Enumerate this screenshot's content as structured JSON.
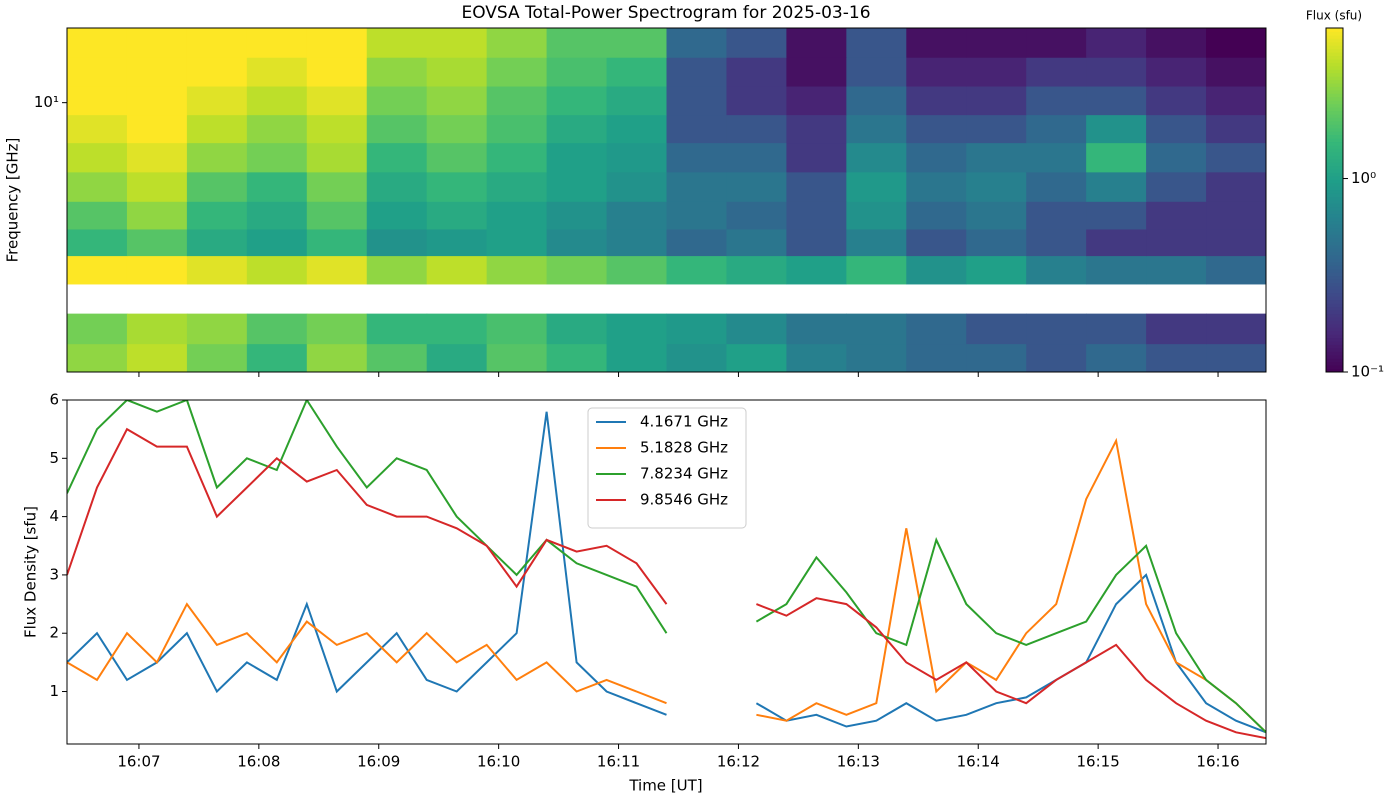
{
  "chart_data": [
    {
      "type": "heatmap",
      "title": "EOVSA Total-Power Spectrogram for 2025-03-16",
      "ylabel": "Frequency [GHz]",
      "time_edges": [
        6.4,
        6.9,
        7.4,
        7.9,
        8.4,
        8.9,
        9.4,
        9.9,
        10.4,
        10.9,
        11.4,
        11.9,
        12.4,
        12.9,
        13.4,
        13.9,
        14.4,
        14.9,
        15.4,
        15.9,
        16.4
      ],
      "freq_edges": [
        1.2,
        1.5,
        1.9,
        2.4,
        3.0,
        3.7,
        4.6,
        5.8,
        7.3,
        9.1,
        11.4,
        14.3,
        18.0
      ],
      "z": [
        [
          3,
          4,
          2.5,
          1.5,
          3,
          2,
          1.2,
          2,
          1.5,
          1,
          0.8,
          1,
          0.6,
          0.5,
          0.4,
          0.4,
          0.3,
          0.4,
          0.3,
          0.3
        ],
        [
          2.5,
          3.5,
          3,
          2,
          2.5,
          1.5,
          1.5,
          1.8,
          1.2,
          1,
          0.9,
          0.7,
          0.5,
          0.5,
          0.4,
          0.3,
          0.3,
          0.3,
          0.2,
          0.2
        ],
        [
          null,
          null,
          null,
          null,
          null,
          null,
          null,
          null,
          null,
          null,
          null,
          null,
          null,
          null,
          null,
          null,
          null,
          null,
          null,
          null
        ],
        [
          6,
          6,
          5,
          4,
          5,
          3,
          4,
          3,
          2.5,
          2,
          1.5,
          1.2,
          1,
          1.5,
          0.8,
          1,
          0.6,
          0.5,
          0.5,
          0.4
        ],
        [
          1.5,
          2,
          1.2,
          1,
          1.5,
          0.8,
          0.9,
          1,
          0.7,
          0.6,
          0.4,
          0.5,
          0.3,
          0.6,
          0.3,
          0.4,
          0.3,
          0.2,
          0.2,
          0.2
        ],
        [
          2,
          3,
          1.5,
          1.2,
          2,
          1,
          1.2,
          1,
          0.8,
          0.6,
          0.5,
          0.4,
          0.3,
          0.8,
          0.4,
          0.5,
          0.3,
          0.3,
          0.2,
          0.2
        ],
        [
          3,
          4,
          2,
          1.5,
          2.5,
          1.2,
          1.5,
          1.2,
          1,
          0.8,
          0.5,
          0.5,
          0.3,
          0.9,
          0.5,
          0.6,
          0.4,
          0.6,
          0.3,
          0.2
        ],
        [
          4,
          5,
          3,
          2.5,
          3.5,
          1.5,
          2,
          1.5,
          1,
          0.9,
          0.4,
          0.4,
          0.2,
          0.7,
          0.4,
          0.5,
          0.5,
          1.5,
          0.4,
          0.3
        ],
        [
          5,
          6,
          4,
          3,
          4,
          2,
          2.5,
          1.8,
          1.2,
          1,
          0.3,
          0.3,
          0.2,
          0.5,
          0.3,
          0.3,
          0.4,
          0.8,
          0.3,
          0.2
        ],
        [
          6,
          6,
          5,
          4,
          5,
          2.5,
          3,
          2,
          1.5,
          1.2,
          0.3,
          0.2,
          0.15,
          0.4,
          0.2,
          0.2,
          0.3,
          0.3,
          0.2,
          0.15
        ],
        [
          6,
          6,
          6,
          5,
          6,
          3,
          3.5,
          2.5,
          1.8,
          1.5,
          0.3,
          0.2,
          0.12,
          0.3,
          0.15,
          0.15,
          0.2,
          0.2,
          0.15,
          0.12
        ],
        [
          6,
          6,
          6,
          6,
          6,
          4,
          4,
          3,
          2,
          2,
          0.4,
          0.3,
          0.12,
          0.3,
          0.12,
          0.12,
          0.12,
          0.15,
          0.12,
          0.1
        ]
      ],
      "xlim": [
        6.4,
        16.4
      ],
      "xticks": [
        7,
        8,
        9,
        10,
        11,
        12,
        13,
        14,
        15,
        16
      ],
      "ylim": [
        1.2,
        18
      ],
      "yscale": "log",
      "yticks": [
        {
          "value": 10,
          "label": "10¹"
        }
      ],
      "colorbar": {
        "label": "Flux (sfu)",
        "scale": "log",
        "clim": [
          0.1,
          6
        ],
        "ticks": [
          {
            "value": 0.1,
            "label": "10⁻¹"
          },
          {
            "value": 1,
            "label": "10⁰"
          }
        ]
      }
    },
    {
      "type": "line",
      "xlabel": "Time [UT]",
      "ylabel": "Flux Density [sfu]",
      "x": [
        6.4,
        6.65,
        6.9,
        7.15,
        7.4,
        7.65,
        7.9,
        8.15,
        8.4,
        8.65,
        8.9,
        9.15,
        9.4,
        9.65,
        9.9,
        10.15,
        10.4,
        10.65,
        10.9,
        11.15,
        11.4,
        11.65,
        11.9,
        12.15,
        12.4,
        12.65,
        12.9,
        13.15,
        13.4,
        13.65,
        13.9,
        14.15,
        14.4,
        14.65,
        14.9,
        15.15,
        15.4,
        15.65,
        15.9,
        16.15,
        16.4
      ],
      "series": [
        {
          "name": "4.1671 GHz",
          "color": "#1f77b4",
          "values": [
            1.5,
            2,
            1.2,
            1.5,
            2,
            1,
            1.5,
            1.2,
            2.5,
            1,
            1.5,
            2,
            1.2,
            1,
            1.5,
            2,
            5.8,
            1.5,
            1,
            0.8,
            0.6,
            null,
            null,
            0.8,
            0.5,
            0.6,
            0.4,
            0.5,
            0.8,
            0.5,
            0.6,
            0.8,
            0.9,
            1.2,
            1.5,
            2.5,
            3,
            1.5,
            0.8,
            0.5,
            0.3
          ]
        },
        {
          "name": "5.1828 GHz",
          "color": "#ff7f0e",
          "values": [
            1.5,
            1.2,
            2,
            1.5,
            2.5,
            1.8,
            2,
            1.5,
            2.2,
            1.8,
            2,
            1.5,
            2,
            1.5,
            1.8,
            1.2,
            1.5,
            1,
            1.2,
            1,
            0.8,
            null,
            null,
            0.6,
            0.5,
            0.8,
            0.6,
            0.8,
            3.8,
            1,
            1.5,
            1.2,
            2,
            2.5,
            4.3,
            5.3,
            2.5,
            1.5,
            1.2,
            0.8,
            0.3
          ]
        },
        {
          "name": "7.8234 GHz",
          "color": "#2ca02c",
          "values": [
            4.4,
            5.5,
            6,
            5.8,
            6,
            4.5,
            5,
            4.8,
            6,
            5.2,
            4.5,
            5,
            4.8,
            4,
            3.5,
            3,
            3.6,
            3.2,
            3,
            2.8,
            2,
            null,
            null,
            2.2,
            2.5,
            3.3,
            2.7,
            2,
            1.8,
            3.6,
            2.5,
            2,
            1.8,
            2,
            2.2,
            3,
            3.5,
            2,
            1.2,
            0.8,
            0.3
          ]
        },
        {
          "name": "9.8546 GHz",
          "color": "#d62728",
          "values": [
            3,
            4.5,
            5.5,
            5.2,
            5.2,
            4,
            4.5,
            5,
            4.6,
            4.8,
            4.2,
            4,
            4,
            3.8,
            3.5,
            2.8,
            3.6,
            3.4,
            3.5,
            3.2,
            2.5,
            null,
            null,
            2.5,
            2.3,
            2.6,
            2.5,
            2.1,
            1.5,
            1.2,
            1.5,
            1,
            0.8,
            1.2,
            1.5,
            1.8,
            1.2,
            0.8,
            0.5,
            0.3,
            0.2
          ]
        }
      ],
      "xlim": [
        6.4,
        16.4
      ],
      "xticks": [
        {
          "value": 7,
          "label": "16:07"
        },
        {
          "value": 8,
          "label": "16:08"
        },
        {
          "value": 9,
          "label": "16:09"
        },
        {
          "value": 10,
          "label": "16:10"
        },
        {
          "value": 11,
          "label": "16:11"
        },
        {
          "value": 12,
          "label": "16:12"
        },
        {
          "value": 13,
          "label": "16:13"
        },
        {
          "value": 14,
          "label": "16:14"
        },
        {
          "value": 15,
          "label": "16:15"
        },
        {
          "value": 16,
          "label": "16:16"
        }
      ],
      "ylim": [
        0.1,
        6
      ],
      "yticks": [
        1,
        2,
        3,
        4,
        5,
        6
      ],
      "legend": "upper center"
    }
  ]
}
